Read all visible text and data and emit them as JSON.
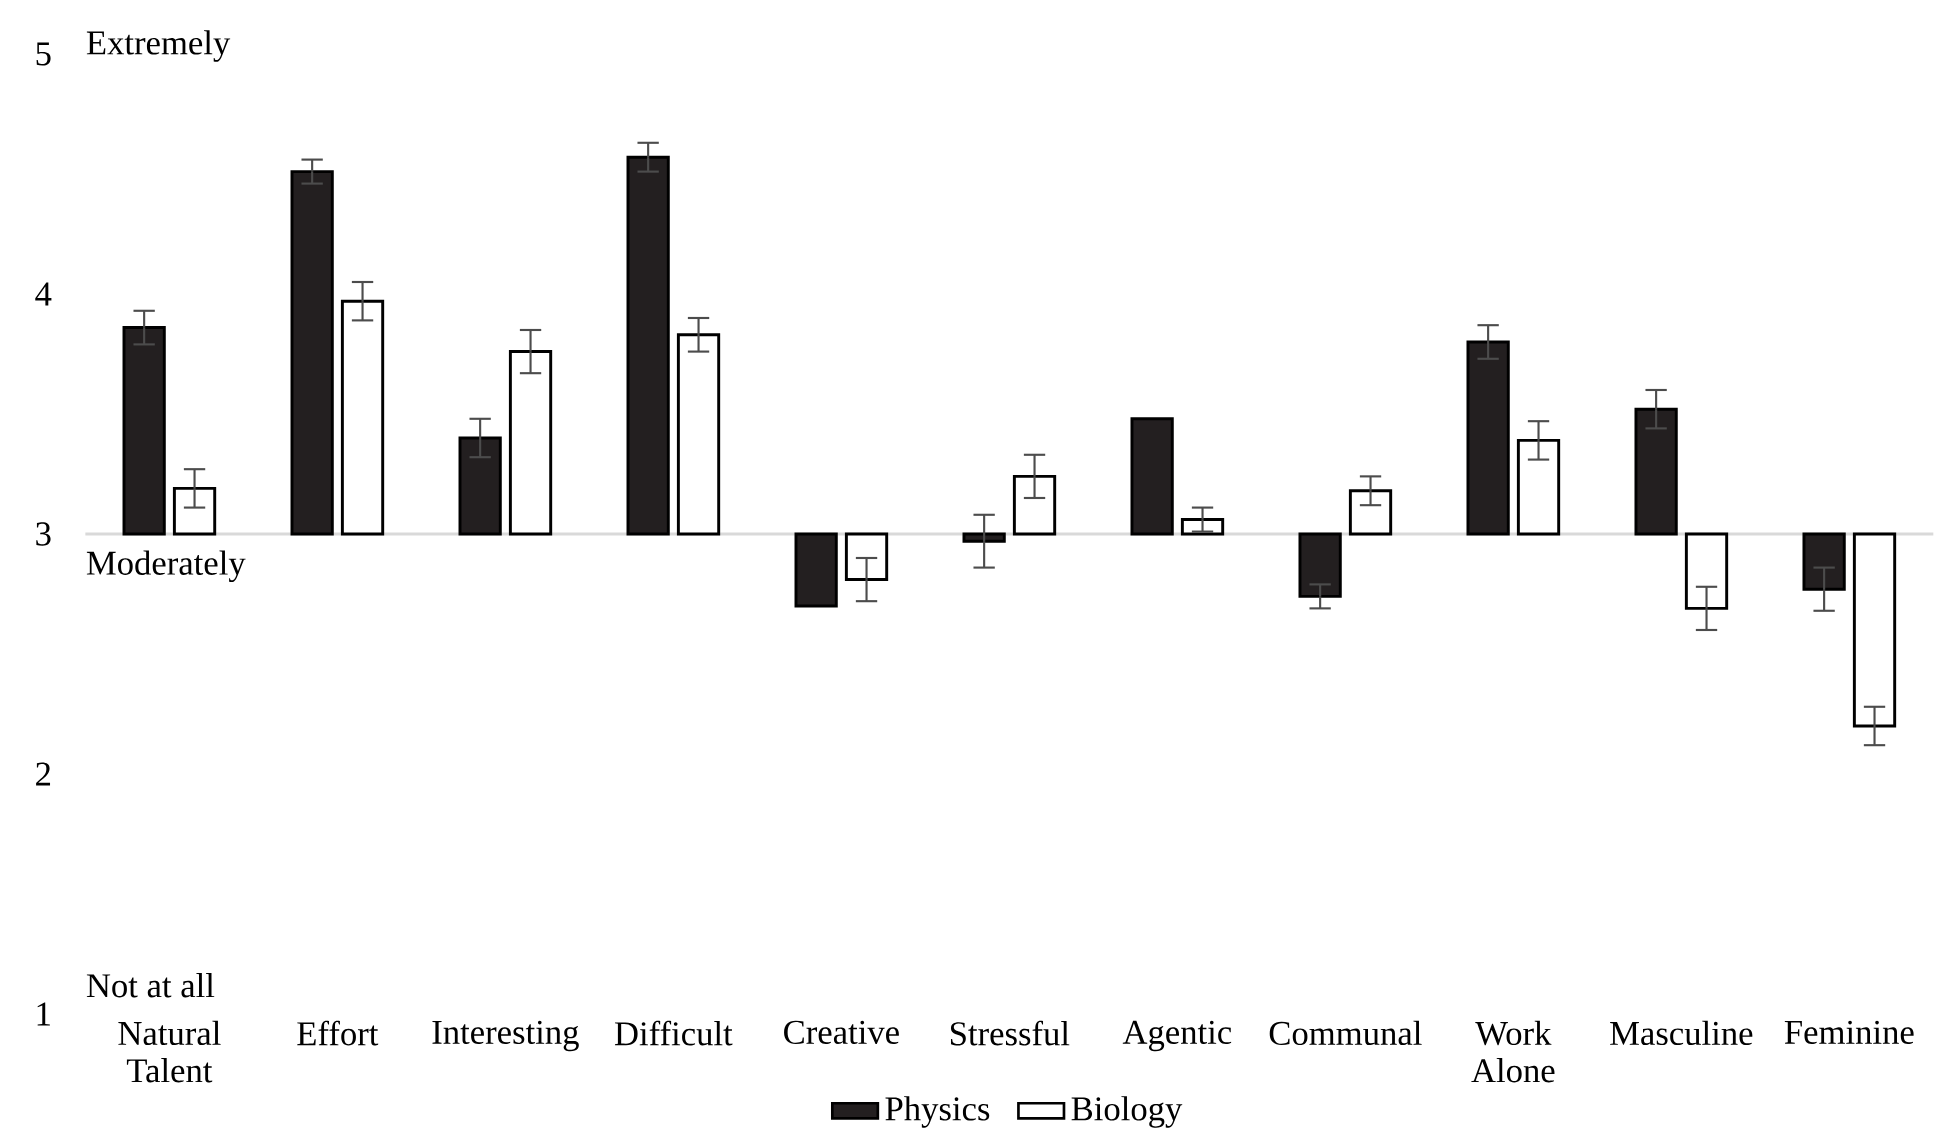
{
  "chart_data": {
    "type": "bar",
    "categories": [
      "Natural Talent",
      "Effort",
      "Interesting",
      "Difficult",
      "Creative",
      "Stressful",
      "Agentic",
      "Communal",
      "Work Alone",
      "Masculine",
      "Feminine"
    ],
    "series": [
      {
        "name": "Physics",
        "color": "#231f20",
        "base": [
          3,
          3,
          3,
          3,
          3,
          3,
          3,
          3,
          3,
          3,
          3
        ],
        "values": [
          0.86,
          1.51,
          0.4,
          1.57,
          -0.3,
          -0.03,
          0.48,
          -0.26,
          0.8,
          0.52,
          -0.23
        ],
        "errors": [
          0.07,
          0.05,
          0.08,
          0.06,
          null,
          0.11,
          null,
          0.05,
          0.07,
          0.08,
          0.09
        ]
      },
      {
        "name": "Biology",
        "color": "#ffffff",
        "base": [
          3,
          3,
          3,
          3,
          3,
          3,
          3,
          3,
          3,
          3,
          3
        ],
        "values": [
          0.19,
          0.97,
          0.76,
          0.83,
          -0.19,
          0.24,
          0.06,
          0.18,
          0.39,
          -0.31,
          -0.8
        ],
        "errors": [
          0.08,
          0.08,
          0.09,
          0.07,
          0.09,
          0.09,
          0.05,
          0.06,
          0.08,
          0.09,
          0.08
        ]
      }
    ],
    "ylim": [
      1,
      5
    ],
    "yticks": [
      1,
      2,
      3,
      4,
      5
    ],
    "legend": "bottom",
    "ref_lines": [
      {
        "axis": "y",
        "value": 3,
        "color": "#d9d9d9"
      }
    ],
    "annotations": [
      "Extremely",
      "Moderately",
      "Not at all"
    ]
  }
}
